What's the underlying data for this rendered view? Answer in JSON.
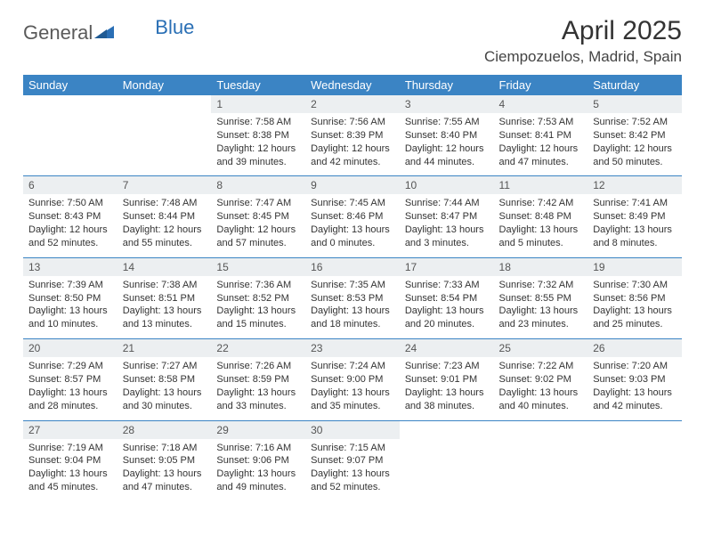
{
  "brand": {
    "part1": "General",
    "part2": "Blue"
  },
  "title": "April 2025",
  "location": "Ciempozuelos, Madrid, Spain",
  "colors": {
    "header_bg": "#3b84c4",
    "header_fg": "#ffffff",
    "daynum_bg": "#eceff1",
    "rule": "#3b84c4",
    "logo_gray": "#5a5a5a",
    "logo_blue": "#2a6fb5",
    "background": "#ffffff"
  },
  "typography": {
    "title_fontsize": 30,
    "location_fontsize": 17,
    "dow_fontsize": 13,
    "daynum_fontsize": 12,
    "body_fontsize": 11
  },
  "days_of_week": [
    "Sunday",
    "Monday",
    "Tuesday",
    "Wednesday",
    "Thursday",
    "Friday",
    "Saturday"
  ],
  "weeks": [
    [
      null,
      null,
      {
        "n": "1",
        "sunrise": "7:58 AM",
        "sunset": "8:38 PM",
        "daylight": "12 hours and 39 minutes."
      },
      {
        "n": "2",
        "sunrise": "7:56 AM",
        "sunset": "8:39 PM",
        "daylight": "12 hours and 42 minutes."
      },
      {
        "n": "3",
        "sunrise": "7:55 AM",
        "sunset": "8:40 PM",
        "daylight": "12 hours and 44 minutes."
      },
      {
        "n": "4",
        "sunrise": "7:53 AM",
        "sunset": "8:41 PM",
        "daylight": "12 hours and 47 minutes."
      },
      {
        "n": "5",
        "sunrise": "7:52 AM",
        "sunset": "8:42 PM",
        "daylight": "12 hours and 50 minutes."
      }
    ],
    [
      {
        "n": "6",
        "sunrise": "7:50 AM",
        "sunset": "8:43 PM",
        "daylight": "12 hours and 52 minutes."
      },
      {
        "n": "7",
        "sunrise": "7:48 AM",
        "sunset": "8:44 PM",
        "daylight": "12 hours and 55 minutes."
      },
      {
        "n": "8",
        "sunrise": "7:47 AM",
        "sunset": "8:45 PM",
        "daylight": "12 hours and 57 minutes."
      },
      {
        "n": "9",
        "sunrise": "7:45 AM",
        "sunset": "8:46 PM",
        "daylight": "13 hours and 0 minutes."
      },
      {
        "n": "10",
        "sunrise": "7:44 AM",
        "sunset": "8:47 PM",
        "daylight": "13 hours and 3 minutes."
      },
      {
        "n": "11",
        "sunrise": "7:42 AM",
        "sunset": "8:48 PM",
        "daylight": "13 hours and 5 minutes."
      },
      {
        "n": "12",
        "sunrise": "7:41 AM",
        "sunset": "8:49 PM",
        "daylight": "13 hours and 8 minutes."
      }
    ],
    [
      {
        "n": "13",
        "sunrise": "7:39 AM",
        "sunset": "8:50 PM",
        "daylight": "13 hours and 10 minutes."
      },
      {
        "n": "14",
        "sunrise": "7:38 AM",
        "sunset": "8:51 PM",
        "daylight": "13 hours and 13 minutes."
      },
      {
        "n": "15",
        "sunrise": "7:36 AM",
        "sunset": "8:52 PM",
        "daylight": "13 hours and 15 minutes."
      },
      {
        "n": "16",
        "sunrise": "7:35 AM",
        "sunset": "8:53 PM",
        "daylight": "13 hours and 18 minutes."
      },
      {
        "n": "17",
        "sunrise": "7:33 AM",
        "sunset": "8:54 PM",
        "daylight": "13 hours and 20 minutes."
      },
      {
        "n": "18",
        "sunrise": "7:32 AM",
        "sunset": "8:55 PM",
        "daylight": "13 hours and 23 minutes."
      },
      {
        "n": "19",
        "sunrise": "7:30 AM",
        "sunset": "8:56 PM",
        "daylight": "13 hours and 25 minutes."
      }
    ],
    [
      {
        "n": "20",
        "sunrise": "7:29 AM",
        "sunset": "8:57 PM",
        "daylight": "13 hours and 28 minutes."
      },
      {
        "n": "21",
        "sunrise": "7:27 AM",
        "sunset": "8:58 PM",
        "daylight": "13 hours and 30 minutes."
      },
      {
        "n": "22",
        "sunrise": "7:26 AM",
        "sunset": "8:59 PM",
        "daylight": "13 hours and 33 minutes."
      },
      {
        "n": "23",
        "sunrise": "7:24 AM",
        "sunset": "9:00 PM",
        "daylight": "13 hours and 35 minutes."
      },
      {
        "n": "24",
        "sunrise": "7:23 AM",
        "sunset": "9:01 PM",
        "daylight": "13 hours and 38 minutes."
      },
      {
        "n": "25",
        "sunrise": "7:22 AM",
        "sunset": "9:02 PM",
        "daylight": "13 hours and 40 minutes."
      },
      {
        "n": "26",
        "sunrise": "7:20 AM",
        "sunset": "9:03 PM",
        "daylight": "13 hours and 42 minutes."
      }
    ],
    [
      {
        "n": "27",
        "sunrise": "7:19 AM",
        "sunset": "9:04 PM",
        "daylight": "13 hours and 45 minutes."
      },
      {
        "n": "28",
        "sunrise": "7:18 AM",
        "sunset": "9:05 PM",
        "daylight": "13 hours and 47 minutes."
      },
      {
        "n": "29",
        "sunrise": "7:16 AM",
        "sunset": "9:06 PM",
        "daylight": "13 hours and 49 minutes."
      },
      {
        "n": "30",
        "sunrise": "7:15 AM",
        "sunset": "9:07 PM",
        "daylight": "13 hours and 52 minutes."
      },
      null,
      null,
      null
    ]
  ],
  "labels": {
    "sunrise_prefix": "Sunrise: ",
    "sunset_prefix": "Sunset: ",
    "daylight_prefix": "Daylight: "
  }
}
